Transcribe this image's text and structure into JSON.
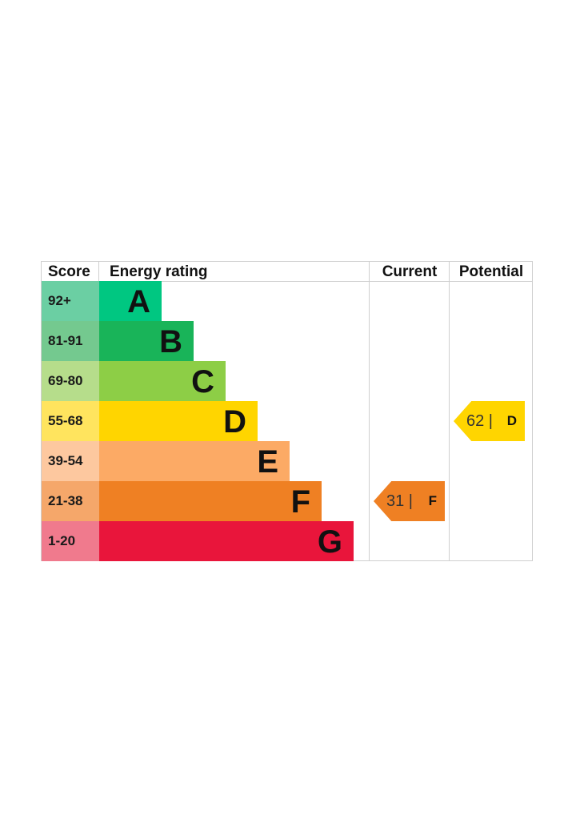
{
  "chart_data": {
    "type": "table",
    "headers": {
      "score": "Score",
      "energy_rating": "Energy rating",
      "current": "Current",
      "potential": "Potential"
    },
    "bands": [
      {
        "score": "92+",
        "letter": "A",
        "color": "#00c781",
        "score_bg": "#6bcfa3"
      },
      {
        "score": "81-91",
        "letter": "B",
        "color": "#19b459",
        "score_bg": "#74c98f"
      },
      {
        "score": "69-80",
        "letter": "C",
        "color": "#8dce46",
        "score_bg": "#b6dd8b"
      },
      {
        "score": "55-68",
        "letter": "D",
        "color": "#ffd500",
        "score_bg": "#ffe45e"
      },
      {
        "score": "39-54",
        "letter": "E",
        "color": "#fcaa65",
        "score_bg": "#fdc89f"
      },
      {
        "score": "21-38",
        "letter": "F",
        "color": "#ef8023",
        "score_bg": "#f5a76a"
      },
      {
        "score": "1-20",
        "letter": "G",
        "color": "#e9153b",
        "score_bg": "#f07a8d"
      }
    ],
    "current": {
      "value": 31,
      "value_text": "31 |",
      "letter": "F",
      "color": "#ef8023"
    },
    "potential": {
      "value": 62,
      "value_text": "62 |",
      "letter": "D",
      "color": "#ffd500"
    }
  }
}
